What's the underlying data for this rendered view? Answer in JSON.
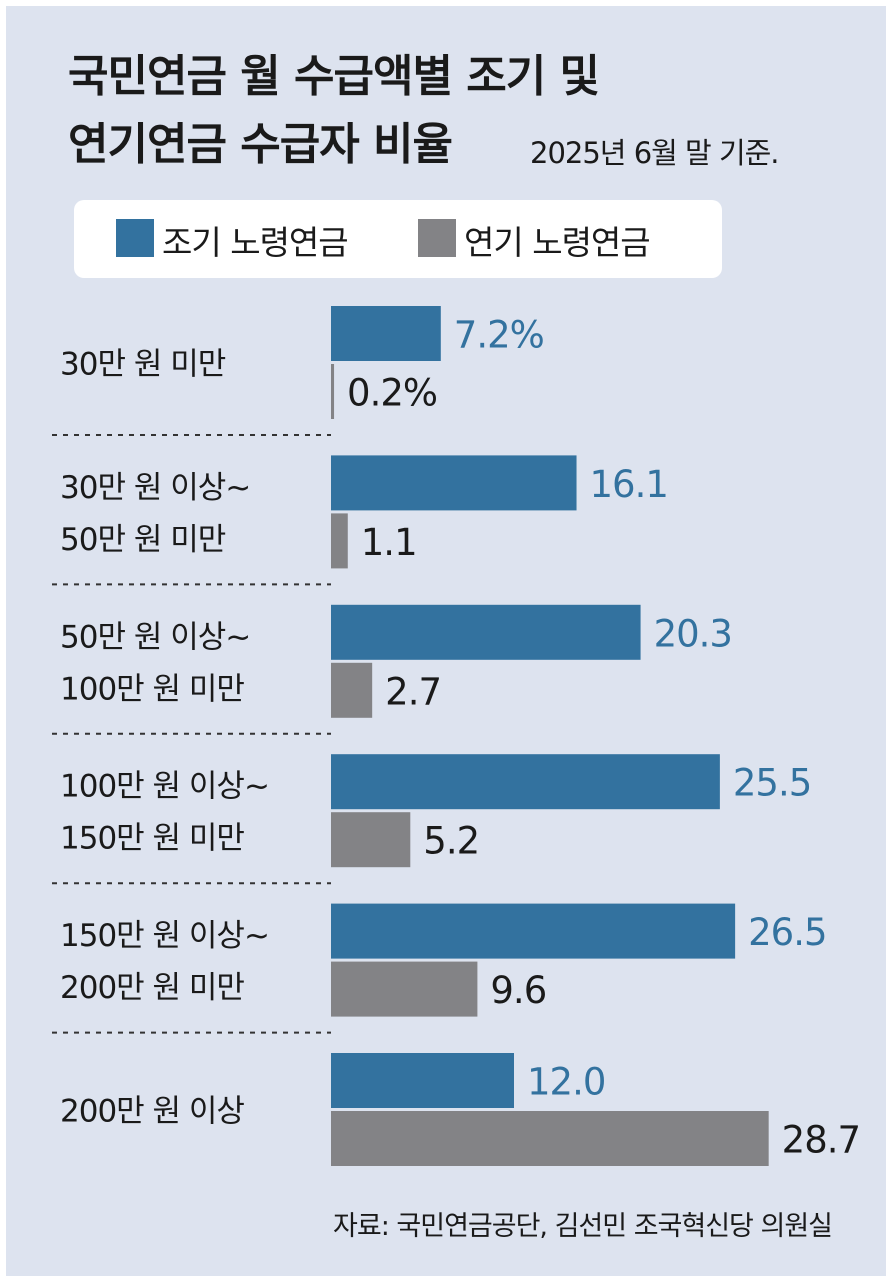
{
  "header": {
    "title_line1": "국민연금 월 수급액별 조기 및",
    "title_line2": "연기연금 수급자 비율",
    "subtitle": "2025년 6월 말 기준."
  },
  "legend": [
    {
      "label": "조기 노령연금",
      "color": "#33729f"
    },
    {
      "label": "연기 노령연금",
      "color": "#838386"
    }
  ],
  "source": "자료: 국민연금공단, 김선민 조국혁신당 의원실",
  "colors": {
    "background": "#dde3ef",
    "early": "#33729f",
    "deferred": "#838386",
    "early_label": "#33729f",
    "deferred_label": "#1a1a1a",
    "divider": "#333333"
  },
  "chart_data": {
    "type": "bar",
    "orientation": "horizontal",
    "unit": "%",
    "categories": [
      [
        "30만 원 미만"
      ],
      [
        "30만 원 이상~",
        "50만 원 미만"
      ],
      [
        "50만 원 이상~",
        "100만 원 미만"
      ],
      [
        "100만 원 이상~",
        "150만 원 미만"
      ],
      [
        "150만 원 이상~",
        "200만 원 미만"
      ],
      [
        "200만 원 이상"
      ]
    ],
    "series": [
      {
        "name": "조기 노령연금",
        "values": [
          7.2,
          16.1,
          20.3,
          25.5,
          26.5,
          12.0
        ],
        "labels": [
          "7.2%",
          "16.1",
          "20.3",
          "25.5",
          "26.5",
          "12.0"
        ]
      },
      {
        "name": "연기 노령연금",
        "values": [
          0.2,
          1.1,
          2.7,
          5.2,
          9.6,
          28.7
        ],
        "labels": [
          "0.2%",
          "1.1",
          "2.7",
          "5.2",
          "9.6",
          "28.7"
        ]
      }
    ],
    "grid": false,
    "legend_position": "top"
  }
}
